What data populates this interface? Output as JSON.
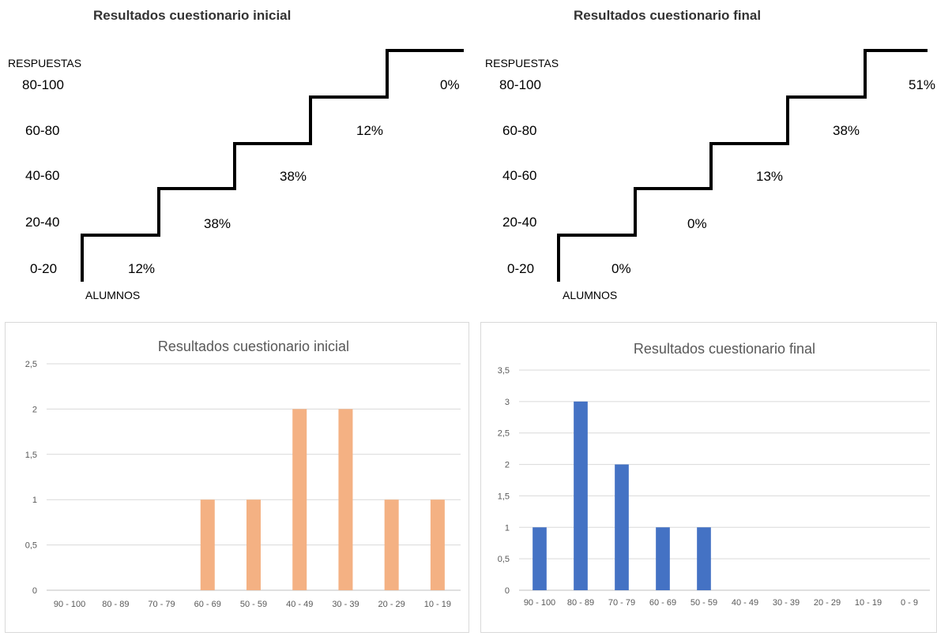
{
  "stairs": [
    {
      "title": "Resultados cuestionario inicial",
      "y_label": "RESPUESTAS",
      "x_label": "ALUMNOS",
      "rows": [
        "80-100",
        "60-80",
        "40-60",
        "20-40",
        "0-20"
      ],
      "steps": [
        "12%",
        "38%",
        "38%",
        "12%",
        "0%"
      ]
    },
    {
      "title": "Resultados cuestionario final",
      "y_label": "RESPUESTAS",
      "x_label": "ALUMNOS",
      "rows": [
        "80-100",
        "60-80",
        "40-60",
        "20-40",
        "0-20"
      ],
      "steps": [
        "0%",
        "0%",
        "13%",
        "38%",
        "51%"
      ]
    }
  ],
  "chart_data": [
    {
      "type": "bar",
      "title": "Resultados cuestionario inicial",
      "categories": [
        "90 - 100",
        "80 - 89",
        "70 - 79",
        "60 - 69",
        "50 - 59",
        "40 - 49",
        "30 - 39",
        "20 - 29",
        "10 - 19"
      ],
      "values": [
        0,
        0,
        0,
        1,
        1,
        2,
        2,
        1,
        1
      ],
      "yticks": [
        "0",
        "0,5",
        "1",
        "1,5",
        "2",
        "2,5"
      ],
      "ylim": [
        0,
        2.5
      ],
      "grid": true,
      "color": "#F4B183"
    },
    {
      "type": "bar",
      "title": "Resultados cuestionario final",
      "categories": [
        "90 - 100",
        "80 - 89",
        "70 - 79",
        "60 - 69",
        "50 - 59",
        "40 - 49",
        "30 - 39",
        "20 - 29",
        "10 - 19",
        "0 - 9"
      ],
      "values": [
        1,
        3,
        2,
        1,
        1,
        0,
        0,
        0,
        0,
        0
      ],
      "yticks": [
        "0",
        "0,5",
        "1",
        "1,5",
        "2",
        "2,5",
        "3",
        "3,5"
      ],
      "ylim": [
        0,
        3.5
      ],
      "grid": true,
      "color": "#4472C4"
    }
  ]
}
